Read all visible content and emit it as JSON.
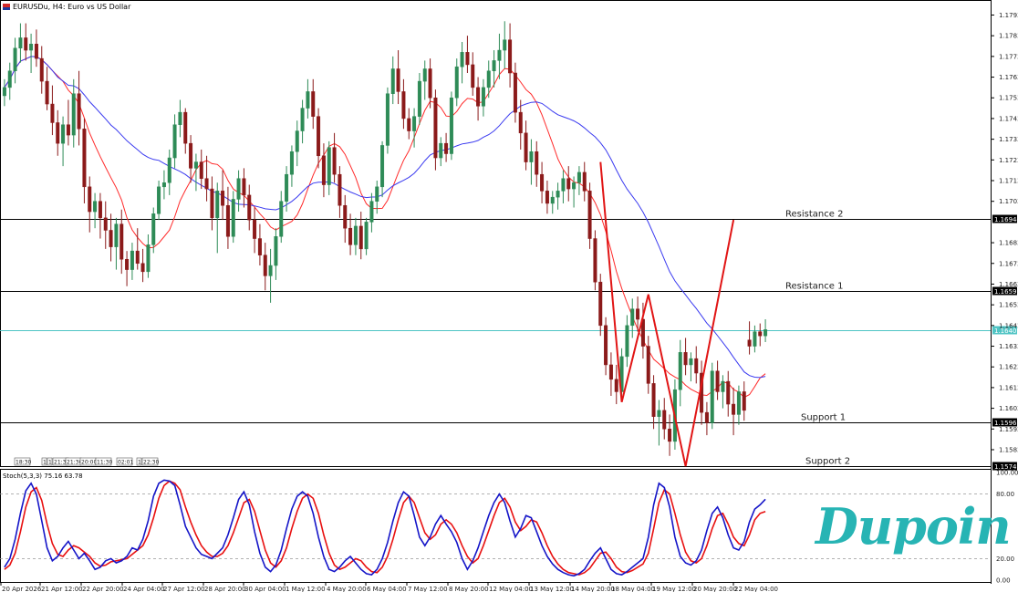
{
  "header": {
    "title": "EURUSDu, H4:  Euro vs US Dollar"
  },
  "stoch": {
    "label": "Stoch(5,3,3) 75.16 63.78",
    "ticks": [
      "100.00",
      "80.00",
      "20.00",
      "0.00"
    ],
    "k_final": 75.16,
    "d_final": 63.78
  },
  "brand": {
    "logo_text": "Dupoin"
  },
  "levels": [
    {
      "name": "Resistance 2",
      "price": 1.16944,
      "tag": "1.16944"
    },
    {
      "name": "Resistance 1",
      "price": 1.16595,
      "tag": "1.16595"
    },
    {
      "name": "Support 1",
      "price": 1.15962,
      "tag": "1.15962"
    },
    {
      "name": "Support 2",
      "price": 1.15749,
      "tag": "1.15749"
    }
  ],
  "current_price": {
    "price": 1.16406,
    "tag": "1.16406"
  },
  "price_axis_labels": [
    "1.17930",
    "1.17830",
    "1.17730",
    "1.17630",
    "1.17530",
    "1.17430",
    "1.17330",
    "1.17230",
    "1.17130",
    "1.17030",
    "1.16830",
    "1.16730",
    "1.16630",
    "1.16530",
    "1.16430",
    "1.16330",
    "1.16230",
    "1.16130",
    "1.16030",
    "1.15930",
    "1.15830"
  ],
  "time_axis_labels": [
    "20 Apr 2026",
    "21 Apr 12:00",
    "22 Apr 20:00",
    "24 Apr 04:00",
    "27 Apr 12:00",
    "28 Apr 20:00",
    "30 Apr 04:00",
    "1 May 12:00",
    "4 May 20:00",
    "6 May 04:00",
    "7 May 12:00",
    "8 May 20:00",
    "12 May 04:00",
    "13 May 12:00",
    "14 May 20:00",
    "18 May 04:00",
    "19 May 12:00",
    "20 May 20:00",
    "22 May 04:00"
  ],
  "event_labels": [
    "18:30",
    "1",
    "1",
    "21:30",
    "21:30",
    "20:00",
    "11:30",
    "02:01",
    "1",
    "22:30"
  ],
  "colors": {
    "bull": "#2e8b57",
    "bear": "#8b1a1a",
    "ma_fast": "#ff2a2a",
    "ma_slow": "#3a3af0",
    "stoch_k": "#1515c8",
    "stoch_d": "#e81010",
    "pattern": "#e11515",
    "current": "#4fc4c4",
    "brand": "#27b4b4"
  },
  "chart_data": {
    "type": "candlestick",
    "symbol": "EURUSDu",
    "timeframe": "H4",
    "ylim": [
      1.15755,
      1.17985
    ],
    "n_candles": 144,
    "candles": [
      [
        1.1754,
        1.1762,
        1.1749,
        1.1758
      ],
      [
        1.1758,
        1.177,
        1.1752,
        1.1766
      ],
      [
        1.1766,
        1.1782,
        1.176,
        1.1777
      ],
      [
        1.1777,
        1.1789,
        1.177,
        1.1782
      ],
      [
        1.1782,
        1.1789,
        1.1771,
        1.1776
      ],
      [
        1.1776,
        1.1784,
        1.1765,
        1.1779
      ],
      [
        1.1779,
        1.1786,
        1.1768,
        1.1772
      ],
      [
        1.1772,
        1.1778,
        1.1755,
        1.1761
      ],
      [
        1.1761,
        1.1768,
        1.1747,
        1.175
      ],
      [
        1.175,
        1.1759,
        1.1735,
        1.1741
      ],
      [
        1.1741,
        1.1747,
        1.1725,
        1.1731
      ],
      [
        1.1731,
        1.1744,
        1.172,
        1.174
      ],
      [
        1.174,
        1.1752,
        1.173,
        1.1735
      ],
      [
        1.1735,
        1.1762,
        1.1729,
        1.1755
      ],
      [
        1.1755,
        1.1766,
        1.173,
        1.1738
      ],
      [
        1.1738,
        1.1743,
        1.1702,
        1.171
      ],
      [
        1.171,
        1.1715,
        1.1688,
        1.1698
      ],
      [
        1.1698,
        1.1707,
        1.169,
        1.1703
      ],
      [
        1.1703,
        1.1707,
        1.1685,
        1.1695
      ],
      [
        1.1695,
        1.1703,
        1.168,
        1.1689
      ],
      [
        1.1689,
        1.1697,
        1.1674,
        1.1681
      ],
      [
        1.1681,
        1.1695,
        1.167,
        1.1692
      ],
      [
        1.1692,
        1.1699,
        1.1668,
        1.1675
      ],
      [
        1.1675,
        1.1679,
        1.1662,
        1.167
      ],
      [
        1.167,
        1.1683,
        1.1665,
        1.1679
      ],
      [
        1.1679,
        1.169,
        1.167,
        1.1673
      ],
      [
        1.1673,
        1.168,
        1.1664,
        1.1669
      ],
      [
        1.1669,
        1.1687,
        1.1666,
        1.1682
      ],
      [
        1.1682,
        1.17,
        1.1678,
        1.1697
      ],
      [
        1.1697,
        1.1713,
        1.1694,
        1.171
      ],
      [
        1.171,
        1.1718,
        1.1704,
        1.1712
      ],
      [
        1.1712,
        1.1728,
        1.1706,
        1.1724
      ],
      [
        1.1724,
        1.1745,
        1.1719,
        1.174
      ],
      [
        1.174,
        1.1752,
        1.1734,
        1.1746
      ],
      [
        1.1746,
        1.1748,
        1.1726,
        1.1731
      ],
      [
        1.1731,
        1.1735,
        1.1712,
        1.1719
      ],
      [
        1.1719,
        1.1726,
        1.1708,
        1.1722
      ],
      [
        1.1722,
        1.1728,
        1.1709,
        1.1714
      ],
      [
        1.1714,
        1.1725,
        1.1703,
        1.1709
      ],
      [
        1.1709,
        1.1715,
        1.1689,
        1.1695
      ],
      [
        1.1695,
        1.1712,
        1.1678,
        1.1708
      ],
      [
        1.1708,
        1.1718,
        1.1694,
        1.1701
      ],
      [
        1.1701,
        1.171,
        1.168,
        1.1686
      ],
      [
        1.1686,
        1.1708,
        1.1683,
        1.1704
      ],
      [
        1.1704,
        1.1718,
        1.1698,
        1.1714
      ],
      [
        1.1714,
        1.1719,
        1.17,
        1.1706
      ],
      [
        1.1706,
        1.1711,
        1.1689,
        1.1694
      ],
      [
        1.1694,
        1.17,
        1.1678,
        1.1685
      ],
      [
        1.1685,
        1.1692,
        1.1672,
        1.1677
      ],
      [
        1.1677,
        1.1683,
        1.166,
        1.1667
      ],
      [
        1.1667,
        1.168,
        1.1654,
        1.1672
      ],
      [
        1.1672,
        1.169,
        1.1665,
        1.1686
      ],
      [
        1.1686,
        1.1708,
        1.1683,
        1.1703
      ],
      [
        1.1703,
        1.172,
        1.1698,
        1.1716
      ],
      [
        1.1716,
        1.173,
        1.171,
        1.1727
      ],
      [
        1.1727,
        1.1742,
        1.172,
        1.1737
      ],
      [
        1.1737,
        1.1752,
        1.1731,
        1.1748
      ],
      [
        1.1748,
        1.1762,
        1.1743,
        1.1756
      ],
      [
        1.1756,
        1.1762,
        1.1738,
        1.1744
      ],
      [
        1.1744,
        1.1748,
        1.1719,
        1.1725
      ],
      [
        1.1725,
        1.1731,
        1.1705,
        1.1711
      ],
      [
        1.1711,
        1.1732,
        1.1706,
        1.1729
      ],
      [
        1.1729,
        1.1736,
        1.1712,
        1.1716
      ],
      [
        1.1716,
        1.172,
        1.1695,
        1.1701
      ],
      [
        1.1701,
        1.1706,
        1.1683,
        1.169
      ],
      [
        1.169,
        1.1697,
        1.1677,
        1.1682
      ],
      [
        1.1682,
        1.1695,
        1.1677,
        1.1691
      ],
      [
        1.1691,
        1.1698,
        1.1675,
        1.168
      ],
      [
        1.168,
        1.1695,
        1.1677,
        1.1693
      ],
      [
        1.1693,
        1.1707,
        1.1688,
        1.1703
      ],
      [
        1.1703,
        1.1713,
        1.1697,
        1.171
      ],
      [
        1.171,
        1.1732,
        1.1705,
        1.173
      ],
      [
        1.173,
        1.1758,
        1.1726,
        1.1755
      ],
      [
        1.1755,
        1.1773,
        1.175,
        1.1767
      ],
      [
        1.1767,
        1.1776,
        1.175,
        1.1756
      ],
      [
        1.1756,
        1.1762,
        1.1738,
        1.1743
      ],
      [
        1.1743,
        1.1748,
        1.1733,
        1.1737
      ],
      [
        1.1737,
        1.1748,
        1.1729,
        1.1744
      ],
      [
        1.1744,
        1.1765,
        1.174,
        1.1761
      ],
      [
        1.1761,
        1.1771,
        1.1752,
        1.1767
      ],
      [
        1.1767,
        1.1772,
        1.1748,
        1.1753
      ],
      [
        1.1753,
        1.1757,
        1.1718,
        1.1724
      ],
      [
        1.1724,
        1.1734,
        1.172,
        1.1731
      ],
      [
        1.1731,
        1.1736,
        1.1722,
        1.1726
      ],
      [
        1.1726,
        1.1756,
        1.1723,
        1.1753
      ],
      [
        1.1753,
        1.1772,
        1.1749,
        1.1768
      ],
      [
        1.1768,
        1.178,
        1.176,
        1.1775
      ],
      [
        1.1775,
        1.1783,
        1.1765,
        1.1769
      ],
      [
        1.1769,
        1.1775,
        1.1754,
        1.1758
      ],
      [
        1.1758,
        1.1763,
        1.1742,
        1.1749
      ],
      [
        1.1749,
        1.1762,
        1.1744,
        1.1758
      ],
      [
        1.1758,
        1.1771,
        1.1753,
        1.1766
      ],
      [
        1.1766,
        1.1776,
        1.1758,
        1.1771
      ],
      [
        1.1771,
        1.1784,
        1.1762,
        1.1776
      ],
      [
        1.1776,
        1.179,
        1.1767,
        1.1781
      ],
      [
        1.1781,
        1.1789,
        1.1758,
        1.1765
      ],
      [
        1.1765,
        1.177,
        1.1741,
        1.1746
      ],
      [
        1.1746,
        1.1752,
        1.1728,
        1.1736
      ],
      [
        1.1736,
        1.1742,
        1.1718,
        1.1722
      ],
      [
        1.1722,
        1.1733,
        1.1711,
        1.1727
      ],
      [
        1.1727,
        1.1732,
        1.171,
        1.1716
      ],
      [
        1.1716,
        1.1722,
        1.1702,
        1.1708
      ],
      [
        1.1708,
        1.1713,
        1.1697,
        1.1702
      ],
      [
        1.1702,
        1.1708,
        1.1697,
        1.1705
      ],
      [
        1.1705,
        1.1712,
        1.1699,
        1.1708
      ],
      [
        1.1708,
        1.1718,
        1.1702,
        1.1714
      ],
      [
        1.1714,
        1.172,
        1.1703,
        1.1709
      ],
      [
        1.1709,
        1.1715,
        1.17,
        1.1712
      ],
      [
        1.1712,
        1.172,
        1.1706,
        1.1717
      ],
      [
        1.1717,
        1.1722,
        1.1703,
        1.1708
      ],
      [
        1.1708,
        1.1712,
        1.168,
        1.1685
      ],
      [
        1.1685,
        1.1689,
        1.166,
        1.1664
      ],
      [
        1.1664,
        1.1668,
        1.1638,
        1.1643
      ],
      [
        1.1643,
        1.1647,
        1.1619,
        1.1624
      ],
      [
        1.1624,
        1.163,
        1.1609,
        1.1617
      ],
      [
        1.1617,
        1.1624,
        1.1605,
        1.1611
      ],
      [
        1.1611,
        1.1632,
        1.1607,
        1.1628
      ],
      [
        1.1628,
        1.1648,
        1.1623,
        1.1643
      ],
      [
        1.1643,
        1.1656,
        1.1637,
        1.1651
      ],
      [
        1.1651,
        1.1657,
        1.164,
        1.1646
      ],
      [
        1.1646,
        1.1654,
        1.1627,
        1.1633
      ],
      [
        1.1633,
        1.1638,
        1.161,
        1.1615
      ],
      [
        1.1615,
        1.1619,
        1.1593,
        1.1599
      ],
      [
        1.1599,
        1.1607,
        1.1585,
        1.1602
      ],
      [
        1.1602,
        1.1608,
        1.1588,
        1.1593
      ],
      [
        1.1593,
        1.16,
        1.158,
        1.1587
      ],
      [
        1.1587,
        1.1617,
        1.1583,
        1.1612
      ],
      [
        1.1612,
        1.1636,
        1.1604,
        1.163
      ],
      [
        1.163,
        1.1637,
        1.1619,
        1.1624
      ],
      [
        1.1624,
        1.163,
        1.1616,
        1.1627
      ],
      [
        1.1627,
        1.1633,
        1.1615,
        1.162
      ],
      [
        1.162,
        1.1626,
        1.1595,
        1.1601
      ],
      [
        1.1601,
        1.1606,
        1.159,
        1.1596
      ],
      [
        1.1596,
        1.1625,
        1.1593,
        1.1621
      ],
      [
        1.1621,
        1.1626,
        1.1607,
        1.1611
      ],
      [
        1.1611,
        1.1619,
        1.1603,
        1.1616
      ],
      [
        1.1616,
        1.1621,
        1.1599,
        1.1605
      ],
      [
        1.1605,
        1.1613,
        1.159,
        1.16
      ],
      [
        1.16,
        1.1614,
        1.1595,
        1.1611
      ],
      [
        1.1611,
        1.1616,
        1.1597,
        1.1602
      ],
      [
        1.1636,
        1.1645,
        1.1629,
        1.1633
      ],
      [
        1.1633,
        1.1643,
        1.163,
        1.164
      ],
      [
        1.164,
        1.1644,
        1.1633,
        1.1638
      ],
      [
        1.1638,
        1.1646,
        1.1635,
        1.1641
      ]
    ],
    "stoch_k": [
      12,
      20,
      38,
      62,
      83,
      90,
      80,
      55,
      30,
      18,
      22,
      30,
      36,
      28,
      20,
      25,
      18,
      10,
      12,
      18,
      20,
      16,
      18,
      22,
      30,
      28,
      38,
      55,
      78,
      90,
      93,
      92,
      88,
      70,
      50,
      40,
      30,
      24,
      22,
      20,
      25,
      30,
      42,
      58,
      75,
      82,
      70,
      45,
      25,
      12,
      8,
      14,
      28,
      48,
      66,
      78,
      82,
      78,
      62,
      40,
      22,
      10,
      8,
      12,
      18,
      22,
      16,
      10,
      6,
      5,
      10,
      20,
      35,
      55,
      72,
      82,
      78,
      60,
      40,
      32,
      40,
      52,
      60,
      52,
      45,
      35,
      20,
      10,
      18,
      30,
      45,
      60,
      72,
      80,
      72,
      55,
      40,
      48,
      60,
      58,
      45,
      32,
      22,
      15,
      10,
      7,
      5,
      4,
      6,
      10,
      18,
      25,
      30,
      20,
      10,
      6,
      5,
      8,
      12,
      16,
      20,
      40,
      70,
      90,
      86,
      68,
      40,
      22,
      16,
      14,
      18,
      28,
      46,
      62,
      68,
      58,
      42,
      30,
      28,
      36,
      54,
      66,
      70,
      75.16
    ],
    "stoch_d": [
      10,
      14,
      25,
      45,
      68,
      82,
      86,
      74,
      52,
      34,
      24,
      22,
      28,
      32,
      30,
      26,
      22,
      16,
      13,
      14,
      17,
      18,
      19,
      20,
      24,
      28,
      32,
      42,
      58,
      76,
      88,
      92,
      90,
      84,
      68,
      54,
      42,
      32,
      26,
      22,
      22,
      25,
      32,
      44,
      58,
      72,
      75,
      64,
      46,
      28,
      16,
      12,
      18,
      30,
      48,
      64,
      76,
      80,
      76,
      62,
      42,
      25,
      14,
      10,
      12,
      16,
      20,
      18,
      12,
      8,
      7,
      12,
      22,
      38,
      56,
      72,
      78,
      72,
      58,
      44,
      38,
      42,
      52,
      56,
      52,
      44,
      32,
      22,
      16,
      20,
      32,
      46,
      60,
      72,
      76,
      68,
      54,
      46,
      50,
      56,
      54,
      44,
      32,
      22,
      15,
      10,
      7,
      6,
      5,
      7,
      11,
      18,
      25,
      26,
      20,
      12,
      8,
      7,
      9,
      12,
      15,
      25,
      48,
      72,
      84,
      80,
      62,
      42,
      26,
      18,
      16,
      20,
      32,
      48,
      60,
      62,
      52,
      40,
      34,
      32,
      42,
      56,
      62,
      63.78
    ]
  }
}
